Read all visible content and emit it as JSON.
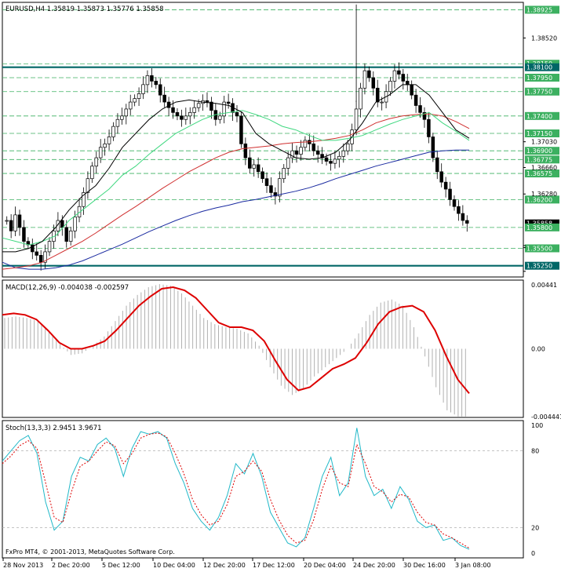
{
  "price_panel": {
    "header": "EURUSD,H4  1.35819 1.35873 1.35776 1.35858",
    "axis_ticks": [
      "1.38520",
      "1.37030",
      "1.36660",
      "1.36280",
      "1.35510",
      "1.35540",
      "1.35170"
    ]
  },
  "macd_panel": {
    "header": "MACD(12,26,9) -0.004038 -0.002597",
    "axis_ticks": [
      "0.00441",
      "0.00",
      "-0.004441"
    ]
  },
  "stoch_panel": {
    "header": "Stoch(13,3,3) 2.9451 3.9671",
    "axis_ticks": [
      "100",
      "80",
      "20",
      "0"
    ]
  },
  "copyright": "FxPro MT4, © 2001-2013, MetaQuotes Software Corp.",
  "time_labels": [
    "28 Nov 2013",
    "2 Dec 20:00",
    "5 Dec 12:00",
    "10 Dec 04:00",
    "12 Dec 20:00",
    "17 Dec 12:00",
    "20 Dec 04:00",
    "24 Dec 20:00",
    "30 Dec 16:00",
    "3 Jan 08:00"
  ],
  "chart_data": [
    {
      "type": "candlestick",
      "symbol": "EURUSD",
      "timeframe": "H4",
      "ohlc_current": {
        "open": 1.35819,
        "high": 1.35873,
        "low": 1.35776,
        "close": 1.35858
      },
      "ylim": [
        1.351,
        1.3902
      ],
      "price_levels": [
        {
          "value": 1.38925,
          "label": "1.38925",
          "color": "#20a040"
        },
        {
          "value": 1.3815,
          "label": "1.38150",
          "color": "#20a040"
        },
        {
          "value": 1.381,
          "label": "1.38100",
          "color": "#006060"
        },
        {
          "value": 1.3795,
          "label": "1.37950",
          "color": "#20a040"
        },
        {
          "value": 1.3775,
          "label": "1.37750",
          "color": "#20a040"
        },
        {
          "value": 1.374,
          "label": "1.37400",
          "color": "#20a040"
        },
        {
          "value": 1.3715,
          "label": "1.37150",
          "color": "#20a040"
        },
        {
          "value": 1.369,
          "label": "1.36900",
          "color": "#20a040"
        },
        {
          "value": 1.36775,
          "label": "1.36775",
          "color": "#20a040"
        },
        {
          "value": 1.36575,
          "label": "1.36575",
          "color": "#20a040"
        },
        {
          "value": 1.362,
          "label": "1.36200",
          "color": "#20a040"
        },
        {
          "value": 1.35858,
          "label": "1.35858",
          "color": "#000000"
        },
        {
          "value": 1.358,
          "label": "1.35800",
          "color": "#20a040"
        },
        {
          "value": 1.355,
          "label": "1.35500",
          "color": "#20a040"
        },
        {
          "value": 1.3525,
          "label": "1.35250",
          "color": "#006060"
        }
      ],
      "support_resistance": [
        1.381,
        1.3525
      ],
      "close_path": [
        1.359,
        1.3575,
        1.3598,
        1.358,
        1.356,
        1.3555,
        1.3545,
        1.354,
        1.353,
        1.3545,
        1.356,
        1.3575,
        1.359,
        1.358,
        1.356,
        1.3575,
        1.3595,
        1.361,
        1.363,
        1.365,
        1.3668,
        1.368,
        1.3695,
        1.37,
        1.371,
        1.3725,
        1.3735,
        1.374,
        1.375,
        1.376,
        1.3765,
        1.3772,
        1.3785,
        1.3798,
        1.379,
        1.3785,
        1.377,
        1.376,
        1.3752,
        1.3745,
        1.374,
        1.3735,
        1.374,
        1.3745,
        1.3752,
        1.3758,
        1.3762,
        1.376,
        1.3748,
        1.3735,
        1.374,
        1.376,
        1.3758,
        1.3745,
        1.374,
        1.37,
        1.368,
        1.3665,
        1.367,
        1.366,
        1.365,
        1.364,
        1.363,
        1.3625,
        1.365,
        1.3665,
        1.368,
        1.369,
        1.3685,
        1.3695,
        1.3705,
        1.37,
        1.369,
        1.3685,
        1.368,
        1.3675,
        1.3672,
        1.3678,
        1.3682,
        1.369,
        1.37,
        1.372,
        1.375,
        1.378,
        1.3805,
        1.3795,
        1.378,
        1.376,
        1.376,
        1.3775,
        1.379,
        1.3805,
        1.38,
        1.379,
        1.3785,
        1.377,
        1.3755,
        1.3745,
        1.3735,
        1.371,
        1.368,
        1.366,
        1.3645,
        1.3635,
        1.362,
        1.361,
        1.36,
        1.359,
        1.3586
      ],
      "ma_fast": {
        "color": "#000000",
        "values": [
          1.3545,
          1.3545,
          1.355,
          1.356,
          1.358,
          1.3605,
          1.3625,
          1.364,
          1.3665,
          1.3695,
          1.3715,
          1.3735,
          1.375,
          1.376,
          1.3763,
          1.376,
          1.3758,
          1.3755,
          1.3745,
          1.3715,
          1.37,
          1.369,
          1.368,
          1.3678,
          1.368,
          1.3688,
          1.3705,
          1.373,
          1.376,
          1.377,
          1.3785,
          1.3785,
          1.377,
          1.3745,
          1.372,
          1.3708
        ]
      },
      "ma_mid": {
        "color": "#40d880",
        "values": [
          1.3565,
          1.356,
          1.3555,
          1.356,
          1.3568,
          1.359,
          1.3605,
          1.362,
          1.3635,
          1.3655,
          1.3668,
          1.3685,
          1.37,
          1.3715,
          1.3725,
          1.3735,
          1.3742,
          1.3745,
          1.3748,
          1.3742,
          1.3735,
          1.3725,
          1.372,
          1.3712,
          1.3705,
          1.3705,
          1.3708,
          1.3712,
          1.372,
          1.3728,
          1.3735,
          1.374,
          1.3745,
          1.373,
          1.3718,
          1.3705
        ]
      },
      "ma_slow": {
        "color": "#d03030",
        "values": [
          1.352,
          1.3522,
          1.3525,
          1.353,
          1.354,
          1.355,
          1.356,
          1.3572,
          1.3585,
          1.3598,
          1.361,
          1.3623,
          1.3636,
          1.3648,
          1.366,
          1.367,
          1.368,
          1.3688,
          1.3693,
          1.3695,
          1.3697,
          1.37,
          1.3702,
          1.3703,
          1.3705,
          1.3708,
          1.3712,
          1.372,
          1.373,
          1.3736,
          1.374,
          1.3742,
          1.3743,
          1.374,
          1.3732,
          1.3722
        ]
      },
      "ma_long": {
        "color": "#1a2aa0",
        "values": [
          1.353,
          1.3522,
          1.352,
          1.352,
          1.3522,
          1.3526,
          1.3532,
          1.354,
          1.3548,
          1.3556,
          1.3565,
          1.3574,
          1.3582,
          1.359,
          1.3597,
          1.3603,
          1.3608,
          1.3612,
          1.3617,
          1.362,
          1.3624,
          1.3628,
          1.3632,
          1.3637,
          1.3643,
          1.365,
          1.3656,
          1.3662,
          1.3668,
          1.3673,
          1.3678,
          1.3683,
          1.3688,
          1.369,
          1.3691,
          1.3691
        ]
      }
    },
    {
      "type": "macd",
      "params": "12,26,9",
      "main": -0.004038,
      "signal": -0.002597,
      "ylim": [
        -0.00441,
        0.00441
      ],
      "histogram": [
        0.002,
        0.0021,
        0.002,
        0.0018,
        0.0012,
        0.0003,
        -0.0004,
        -0.0003,
        0.0002,
        0.0008,
        0.0018,
        0.0028,
        0.0035,
        0.004,
        0.0042,
        0.0041,
        0.0036,
        0.0028,
        0.002,
        0.0016,
        0.0014,
        0.0013,
        0.001,
        0.0002,
        -0.0012,
        -0.0024,
        -0.003,
        -0.0026,
        -0.0018,
        -0.0012,
        -0.0006,
        0.0,
        0.001,
        0.0022,
        0.003,
        0.0032,
        0.0028,
        0.0014,
        -0.0005,
        -0.0025,
        -0.004,
        -0.0044
      ],
      "signal_line": [
        0.0022,
        0.0023,
        0.0022,
        0.0019,
        0.0012,
        0.0004,
        0.0,
        0.0,
        0.0002,
        0.0005,
        0.0012,
        0.002,
        0.0028,
        0.0034,
        0.0039,
        0.004,
        0.0038,
        0.0033,
        0.0025,
        0.0017,
        0.0014,
        0.0014,
        0.0012,
        0.0005,
        -0.0008,
        -0.002,
        -0.0027,
        -0.0025,
        -0.0019,
        -0.0013,
        -0.001,
        -0.0006,
        0.0004,
        0.0016,
        0.0024,
        0.0027,
        0.0028,
        0.0024,
        0.0012,
        -0.0005,
        -0.002,
        -0.0029
      ]
    },
    {
      "type": "stochastic",
      "params": "13,3,3",
      "main": 2.9451,
      "signal": 3.9671,
      "ylim": [
        0,
        100
      ],
      "levels": [
        80,
        20
      ],
      "k_line": [
        72,
        80,
        88,
        92,
        78,
        40,
        18,
        25,
        60,
        75,
        72,
        85,
        90,
        82,
        60,
        82,
        95,
        93,
        95,
        90,
        70,
        55,
        35,
        25,
        18,
        28,
        45,
        70,
        62,
        78,
        60,
        32,
        20,
        8,
        5,
        12,
        35,
        60,
        75,
        45,
        55,
        98,
        60,
        45,
        50,
        35,
        52,
        42,
        25,
        20,
        22,
        10,
        12,
        6,
        3
      ],
      "d_line": [
        70,
        76,
        84,
        88,
        82,
        55,
        28,
        24,
        48,
        68,
        72,
        80,
        87,
        84,
        70,
        78,
        90,
        93,
        94,
        91,
        78,
        62,
        42,
        30,
        22,
        25,
        38,
        60,
        64,
        72,
        64,
        42,
        26,
        14,
        8,
        10,
        26,
        50,
        68,
        55,
        52,
        85,
        70,
        52,
        48,
        40,
        46,
        44,
        32,
        24,
        22,
        15,
        12,
        8,
        4
      ]
    }
  ]
}
